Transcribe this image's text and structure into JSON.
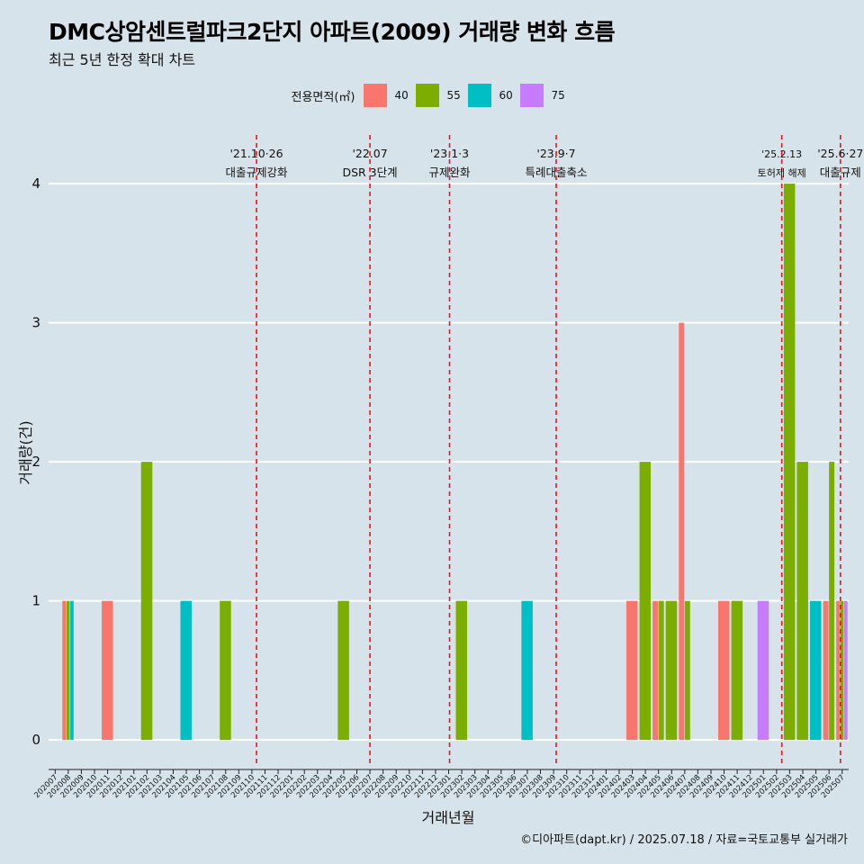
{
  "title": "DMC상암센트럴파크2단지 아파트(2009) 거래량 변화 흐름",
  "subtitle": "최근 5년 한정 확대 차트",
  "caption": "©디아파트(dapt.kr) / 2025.07.18 / 자료=국토교통부 실거래가",
  "colors": {
    "background": "#d6e3ea",
    "grid": "#ffffff",
    "event_line": "#e8151b",
    "40": "#f8766d",
    "55": "#7cae00",
    "60": "#00bfc4",
    "75": "#c77cff"
  },
  "chart_data": {
    "type": "bar",
    "xlabel": "거래년월",
    "ylabel": "거래량(건)",
    "ylim": [
      -0.18,
      4.35
    ],
    "yticks": [
      0,
      1,
      2,
      3,
      4
    ],
    "grid": true,
    "legend": {
      "title": "전용면적(㎡)",
      "position": "top",
      "entries": [
        "40",
        "55",
        "60",
        "75"
      ]
    },
    "categories": [
      "202007",
      "202008",
      "202009",
      "202010",
      "202011",
      "202012",
      "202101",
      "202102",
      "202103",
      "202104",
      "202105",
      "202106",
      "202107",
      "202108",
      "202109",
      "202110",
      "202111",
      "202112",
      "202201",
      "202202",
      "202203",
      "202204",
      "202205",
      "202206",
      "202207",
      "202208",
      "202209",
      "202210",
      "202211",
      "202212",
      "202301",
      "202302",
      "202303",
      "202304",
      "202305",
      "202306",
      "202307",
      "202308",
      "202309",
      "202310",
      "202311",
      "202312",
      "202401",
      "202402",
      "202403",
      "202404",
      "202405",
      "202406",
      "202407",
      "202408",
      "202409",
      "202410",
      "202411",
      "202412",
      "202501",
      "202502",
      "202503",
      "202504",
      "202505",
      "202506",
      "202507"
    ],
    "series": [
      {
        "name": "40",
        "values": [
          {
            "x": "202008",
            "y": 1
          },
          {
            "x": "202011",
            "y": 1
          },
          {
            "x": "202403",
            "y": 1
          },
          {
            "x": "202405",
            "y": 1
          },
          {
            "x": "202407",
            "y": 3
          },
          {
            "x": "202410",
            "y": 1
          },
          {
            "x": "202506",
            "y": 1
          },
          {
            "x": "202507",
            "y": 1
          }
        ]
      },
      {
        "name": "55",
        "values": [
          {
            "x": "202008",
            "y": 1
          },
          {
            "x": "202102",
            "y": 2
          },
          {
            "x": "202108",
            "y": 1
          },
          {
            "x": "202205",
            "y": 1
          },
          {
            "x": "202302",
            "y": 1
          },
          {
            "x": "202404",
            "y": 2
          },
          {
            "x": "202405",
            "y": 1
          },
          {
            "x": "202406",
            "y": 1
          },
          {
            "x": "202407",
            "y": 1
          },
          {
            "x": "202411",
            "y": 1
          },
          {
            "x": "202503",
            "y": 4
          },
          {
            "x": "202504",
            "y": 2
          },
          {
            "x": "202506",
            "y": 2
          },
          {
            "x": "202507",
            "y": 1
          }
        ]
      },
      {
        "name": "60",
        "values": [
          {
            "x": "202008",
            "y": 1
          },
          {
            "x": "202105",
            "y": 1
          },
          {
            "x": "202307",
            "y": 1
          },
          {
            "x": "202505",
            "y": 1
          }
        ]
      },
      {
        "name": "75",
        "values": [
          {
            "x": "202501",
            "y": 1
          },
          {
            "x": "202507",
            "y": 1
          }
        ]
      }
    ],
    "events": [
      {
        "date": "'21.10·26",
        "label": "대출규제강화",
        "pos": 15.35
      },
      {
        "date": "'22.07",
        "label": "DSR 3단계",
        "pos": 24.0
      },
      {
        "date": "'23.1·3",
        "label": "규제완화",
        "pos": 30.07
      },
      {
        "date": "'23.9·7",
        "label": "특례대출축소",
        "pos": 38.2
      },
      {
        "date": "'25.2.13",
        "label": "토허제 해제",
        "pos": 55.4
      },
      {
        "date": "'25.6·27",
        "label": "대출규제",
        "pos": 59.87
      }
    ]
  }
}
